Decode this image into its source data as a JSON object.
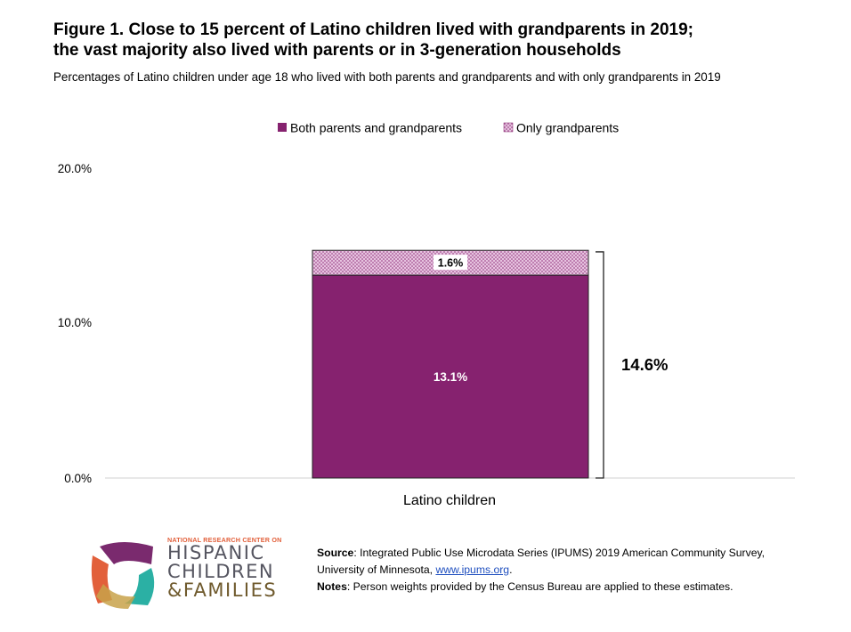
{
  "header": {
    "title_line1": "Figure 1. Close to 15 percent of Latino children lived with grandparents in 2019;",
    "title_line2": "the vast majority also lived with parents or in 3-generation households",
    "subtitle": "Percentages of Latino children under age 18 who lived with both parents and grandparents and with only grandparents in 2019"
  },
  "chart_data": {
    "type": "bar",
    "stacked": true,
    "categories": [
      "Latino children"
    ],
    "series": [
      {
        "name": "Both parents and grandparents",
        "values": [
          13.1
        ],
        "label": "13.1%",
        "color": "#86226f"
      },
      {
        "name": "Only grandparents",
        "values": [
          1.6
        ],
        "label": "1.6%",
        "color": "#d9a6d0",
        "pattern": "dotted"
      }
    ],
    "total": {
      "value": 14.6,
      "label": "14.6%"
    },
    "ylim": [
      0,
      20
    ],
    "yticks": [
      0,
      10,
      20
    ],
    "ytick_labels": [
      "0.0%",
      "10.0%",
      "20.0%"
    ],
    "legend_position": "top-center",
    "grid": false
  },
  "footer": {
    "source_label": "Source",
    "source_text": ": Integrated Public Use Microdata Series (IPUMS) 2019 American Community Survey, University of Minnesota, ",
    "source_link": "www.ipums.org",
    "source_end": ".",
    "notes_label": "Notes",
    "notes_text": ": Person weights provided by the Census Bureau are applied to these estimates."
  },
  "logo": {
    "top_line": "NATIONAL RESEARCH CENTER ON",
    "line1": "HISPANIC",
    "line2": "CHILDREN",
    "line3": "&FAMILIES",
    "colors": [
      "#7a2a6e",
      "#e2603b",
      "#2bb0a4",
      "#c8a24a"
    ]
  }
}
